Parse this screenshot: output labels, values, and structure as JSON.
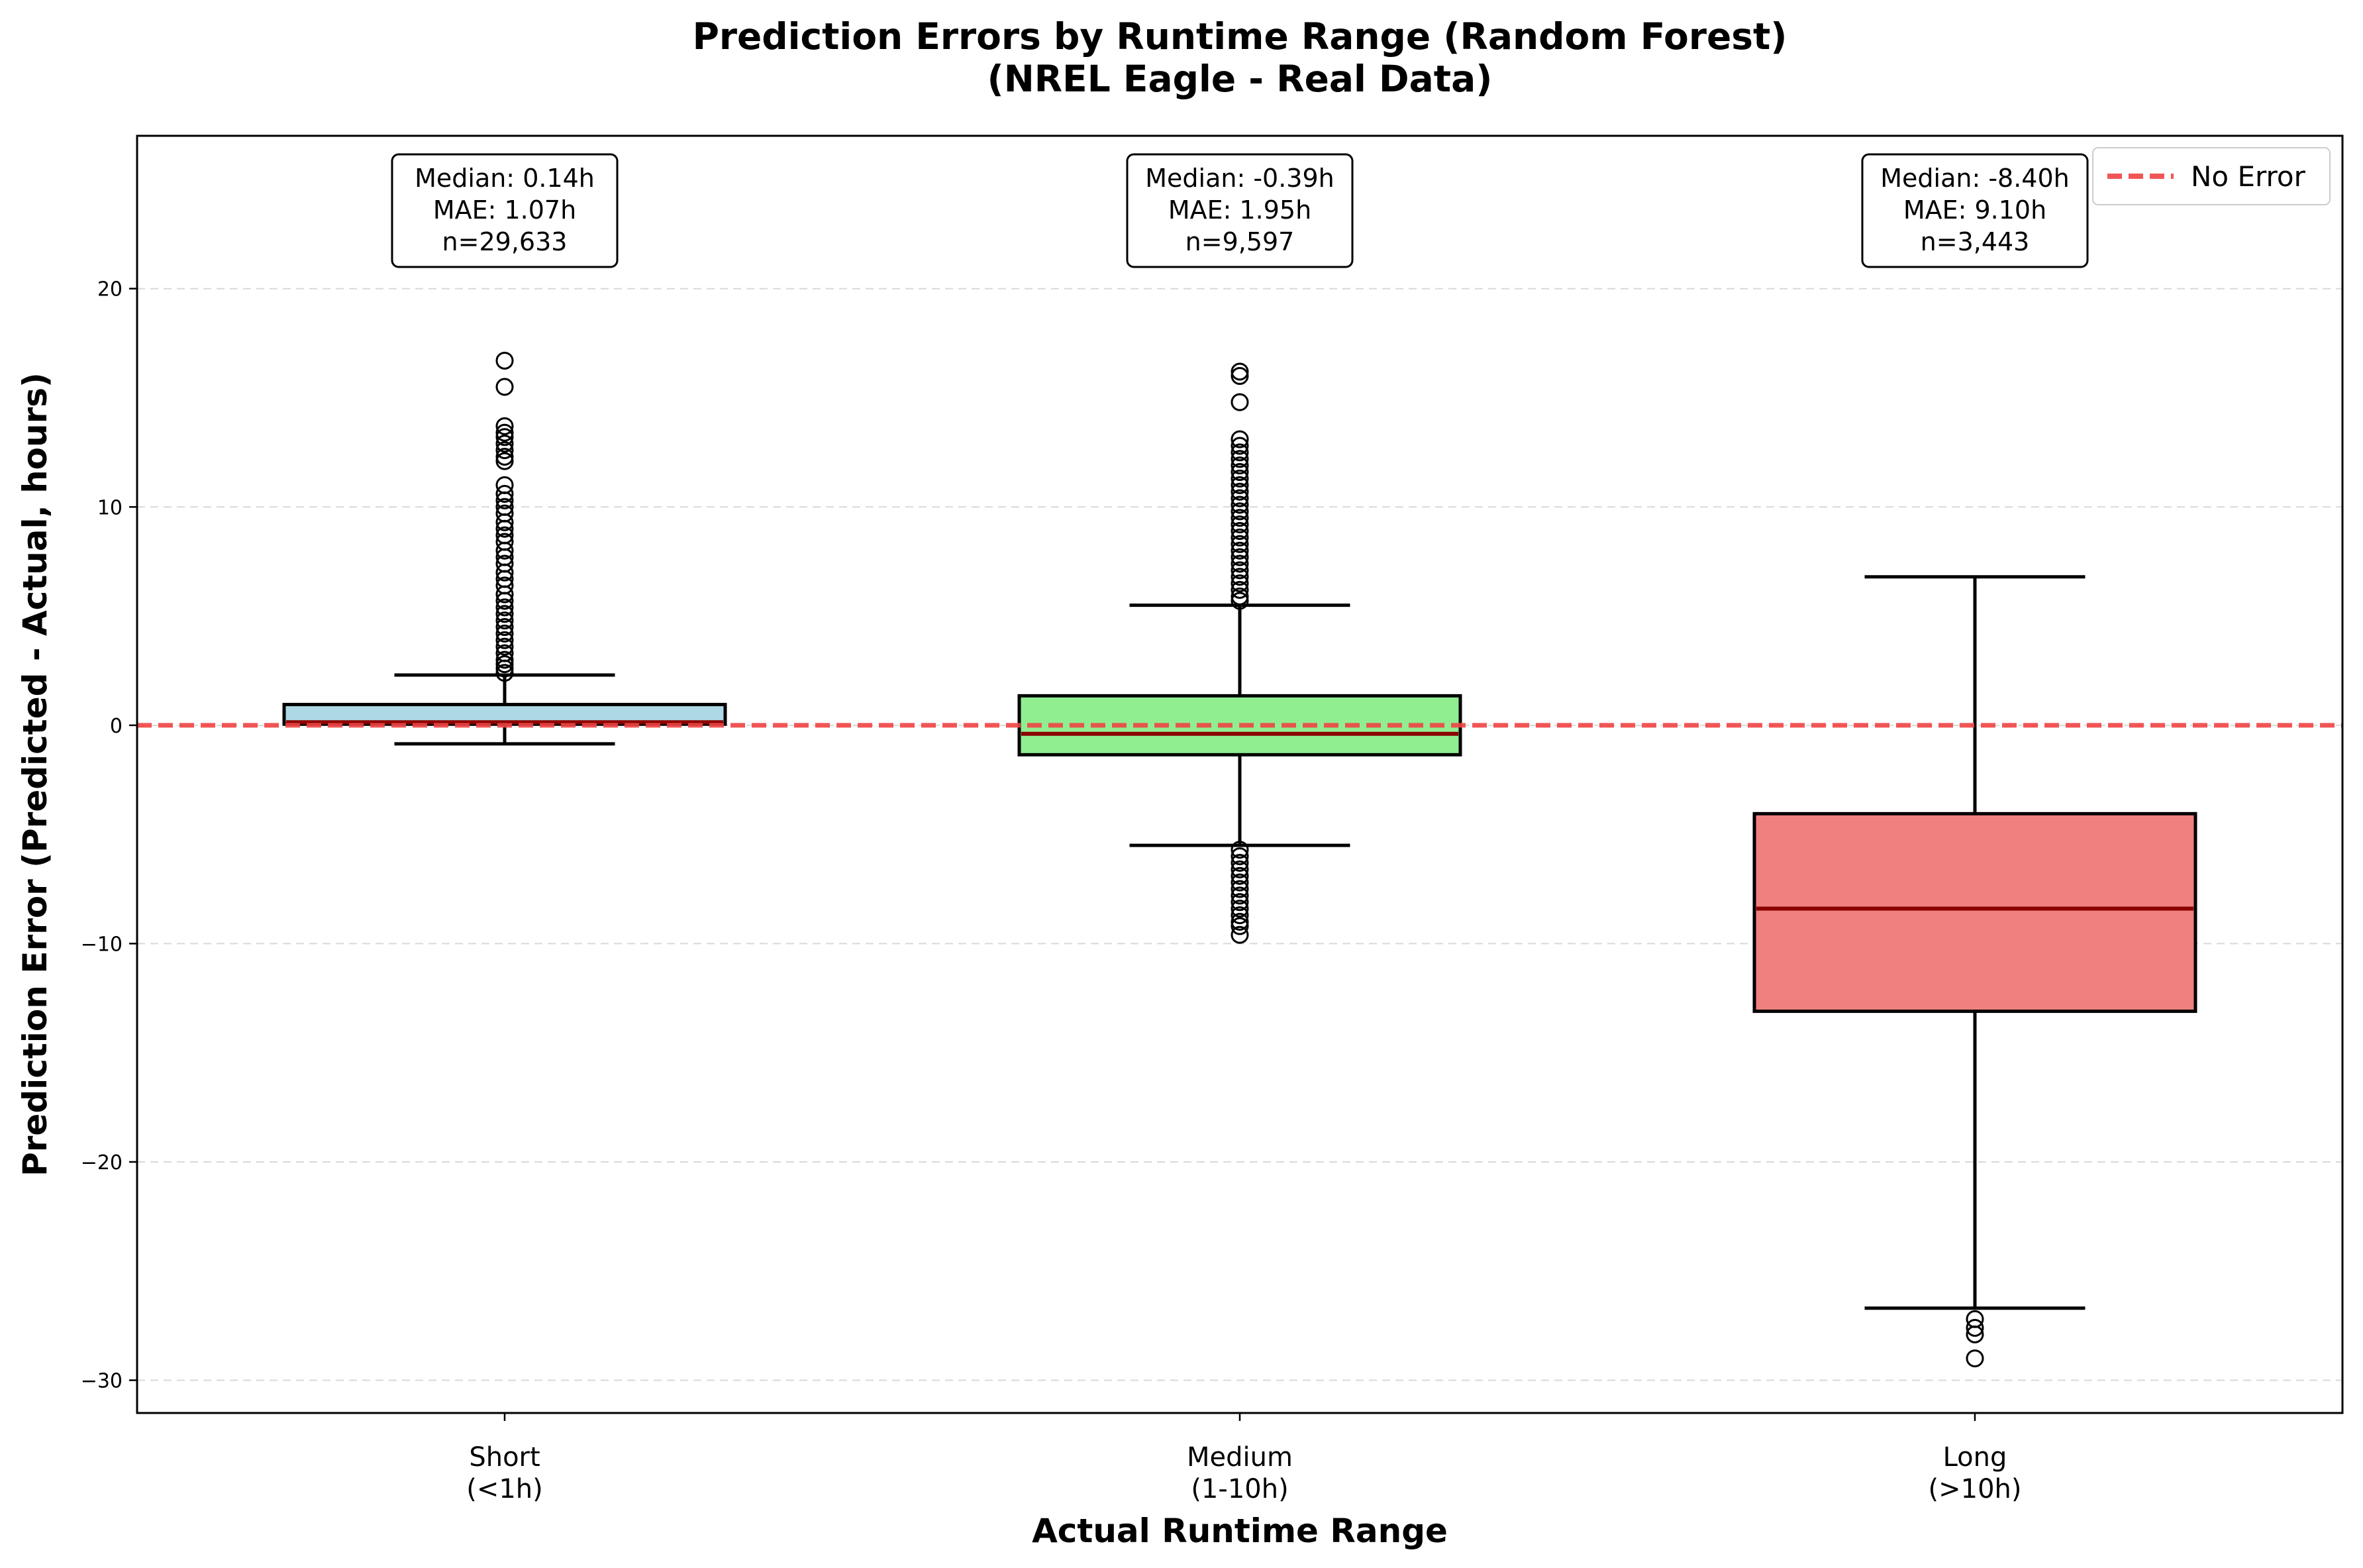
{
  "chart_data": {
    "type": "box",
    "title": "Prediction Errors by Runtime Range (Random Forest)",
    "subtitle": "(NREL Eagle - Real Data)",
    "xlabel": "Actual Runtime Range",
    "ylabel": "Prediction Error (Predicted - Actual, hours)",
    "ylim": [
      -31.5,
      27
    ],
    "yticks": [
      -30,
      -20,
      -10,
      0,
      10,
      20
    ],
    "ytick_labels": [
      "−30",
      "−20",
      "−10",
      "0",
      "10",
      "20"
    ],
    "grid": "y-dashed",
    "reference_line": {
      "y": 0,
      "label": "No Error",
      "color": "#ef4444"
    },
    "legend": {
      "position": "top-right",
      "entries": [
        "No Error"
      ]
    },
    "categories": [
      {
        "line1": "Short",
        "line2": "(<1h)"
      },
      {
        "line1": "Medium",
        "line2": "(1-10h)"
      },
      {
        "line1": "Long",
        "line2": "(>10h)"
      }
    ],
    "series": [
      {
        "category": "Short",
        "color": "#add8e6",
        "whisker_low": -0.85,
        "q1": 0.05,
        "median": 0.14,
        "q3": 0.95,
        "whisker_high": 2.3,
        "annotation": [
          "Median: 0.14h",
          "MAE: 1.07h",
          "n=29,633"
        ],
        "outliers": [
          16.7,
          15.5,
          13.7,
          13.4,
          13.2,
          12.9,
          12.6,
          12.3,
          12.1,
          11.0,
          10.6,
          10.3,
          10.0,
          9.7,
          9.3,
          9.0,
          8.7,
          8.4,
          8.0,
          7.7,
          7.4,
          7.0,
          6.7,
          6.4,
          6.0,
          5.7,
          5.4,
          5.1,
          4.8,
          4.5,
          4.2,
          3.9,
          3.6,
          3.3,
          3.0,
          2.8,
          2.6,
          2.4
        ]
      },
      {
        "category": "Medium",
        "color": "#90ee90",
        "whisker_low": -5.5,
        "q1": -1.35,
        "median": -0.39,
        "q3": 1.35,
        "whisker_high": 5.5,
        "annotation": [
          "Median: -0.39h",
          "MAE: 1.95h",
          "n=9,597"
        ],
        "outliers": [
          16.2,
          16.0,
          14.8,
          13.1,
          12.8,
          12.5,
          12.2,
          11.9,
          11.6,
          11.3,
          11.0,
          10.7,
          10.4,
          10.1,
          9.8,
          9.5,
          9.2,
          8.9,
          8.6,
          8.3,
          8.0,
          7.7,
          7.4,
          7.1,
          6.8,
          6.5,
          6.2,
          5.9,
          5.7,
          -5.7,
          -6.0,
          -6.3,
          -6.6,
          -6.9,
          -7.2,
          -7.5,
          -7.8,
          -8.1,
          -8.4,
          -8.7,
          -9.0,
          -9.2,
          -9.6
        ]
      },
      {
        "category": "Long",
        "color": "#f08080",
        "whisker_low": -26.7,
        "q1": -13.1,
        "median": -8.4,
        "q3": -4.05,
        "whisker_high": 6.8,
        "annotation": [
          "Median: -8.40h",
          "MAE: 9.10h",
          "n=3,443"
        ],
        "outliers": [
          -27.2,
          -27.6,
          -27.9,
          -29.0
        ]
      }
    ]
  }
}
